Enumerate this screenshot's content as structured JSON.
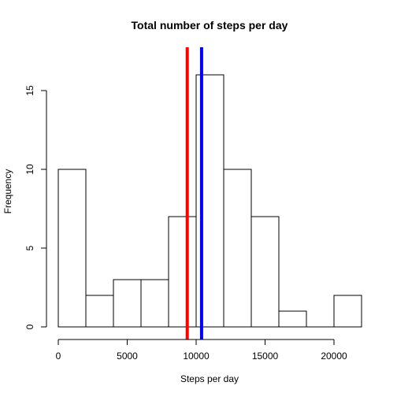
{
  "chart_data": {
    "type": "bar",
    "subtype": "histogram",
    "title": "Total number of steps per day",
    "xlabel": "Steps per day",
    "ylabel": "Frequency",
    "bins": [
      {
        "start": 0,
        "end": 2000,
        "count": 10
      },
      {
        "start": 2000,
        "end": 4000,
        "count": 2
      },
      {
        "start": 4000,
        "end": 6000,
        "count": 3
      },
      {
        "start": 6000,
        "end": 8000,
        "count": 3
      },
      {
        "start": 8000,
        "end": 10000,
        "count": 7
      },
      {
        "start": 10000,
        "end": 12000,
        "count": 16
      },
      {
        "start": 12000,
        "end": 14000,
        "count": 10
      },
      {
        "start": 14000,
        "end": 16000,
        "count": 7
      },
      {
        "start": 16000,
        "end": 18000,
        "count": 1
      },
      {
        "start": 18000,
        "end": 20000,
        "count": 0
      },
      {
        "start": 20000,
        "end": 22000,
        "count": 2
      }
    ],
    "xlim": [
      0,
      22000
    ],
    "ylim": [
      0,
      16
    ],
    "x_ticks": [
      0,
      5000,
      10000,
      15000,
      20000
    ],
    "y_ticks": [
      0,
      5,
      10,
      15
    ],
    "grid": false,
    "legend": "none",
    "bar_fill": "#ffffff",
    "bar_stroke": "#000000",
    "reference_lines": [
      {
        "value": 9354,
        "color": "#ff0000"
      },
      {
        "value": 10395,
        "color": "#0000ff"
      }
    ]
  }
}
